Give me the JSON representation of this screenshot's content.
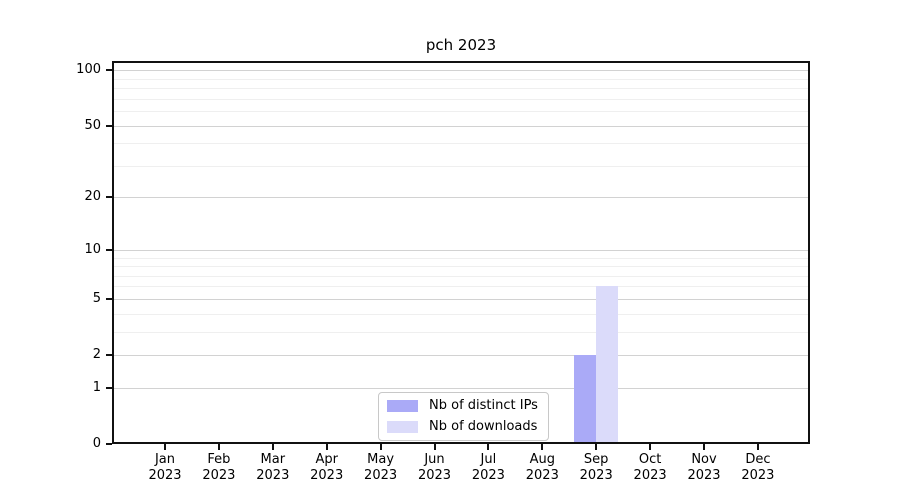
{
  "title": "pch 2023",
  "legend": {
    "items": [
      {
        "label": "Nb of distinct IPs"
      },
      {
        "label": "Nb of downloads"
      }
    ]
  },
  "chart_data": {
    "type": "bar",
    "title": "pch 2023",
    "categories": [
      "Jan",
      "Feb",
      "Mar",
      "Apr",
      "May",
      "Jun",
      "Jul",
      "Aug",
      "Sep",
      "Oct",
      "Nov",
      "Dec"
    ],
    "category_year": "2023",
    "series": [
      {
        "name": "Nb of distinct IPs",
        "color": "#aaaaf7",
        "values": [
          0,
          0,
          0,
          0,
          0,
          0,
          0,
          0,
          2,
          0,
          0,
          0
        ]
      },
      {
        "name": "Nb of downloads",
        "color": "#dbdbfa",
        "values": [
          0,
          0,
          0,
          0,
          0,
          0,
          0,
          0,
          6,
          0,
          0,
          0
        ]
      }
    ],
    "yscale": "log1p",
    "ylim": [
      0,
      112
    ],
    "y_axis_ticks": [
      0,
      1,
      2,
      5,
      10,
      20,
      50,
      100
    ],
    "y_minor_gridlines": [
      3,
      4,
      6,
      7,
      8,
      9,
      30,
      40,
      60,
      70,
      80,
      90
    ],
    "grid": "horizontal-only",
    "legend_position": "inside-bottom-center",
    "colors": {
      "major_grid": "#d2d2d2",
      "minor_grid": "#efefef",
      "axis_frame": "#111111",
      "text": "#000000",
      "background": "#ffffff"
    }
  }
}
